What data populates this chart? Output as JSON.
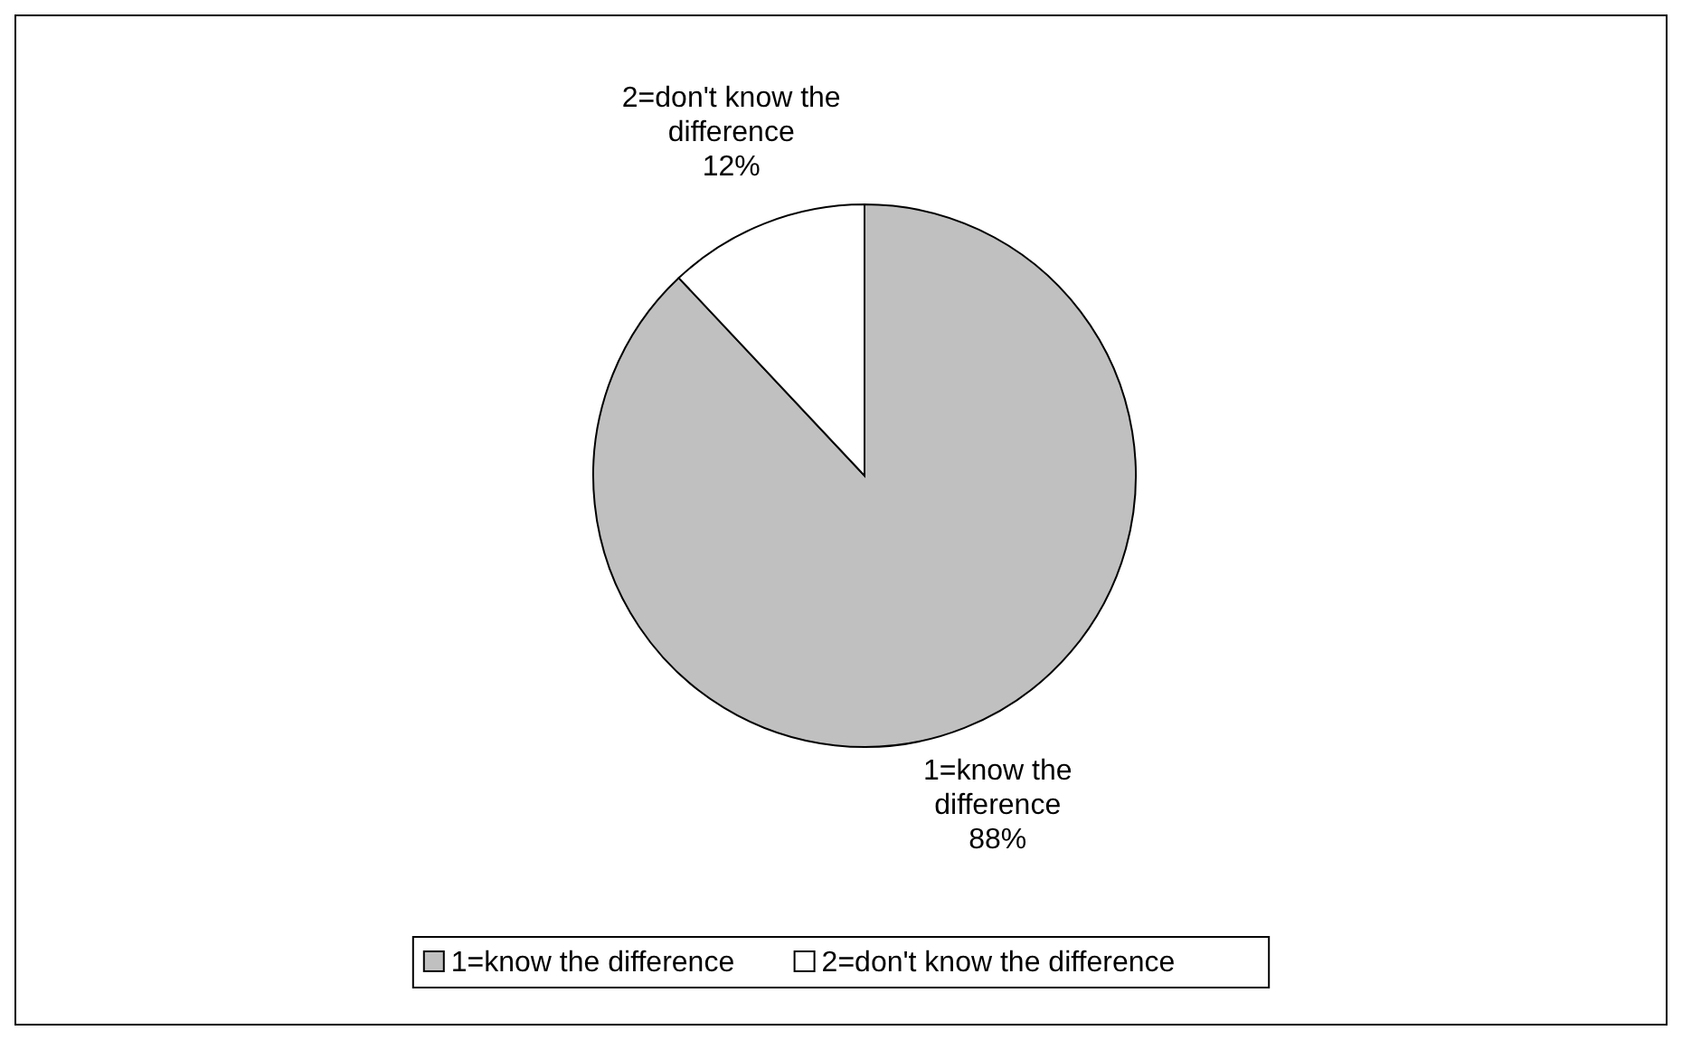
{
  "chart_data": {
    "type": "pie",
    "categories": [
      "1=know the difference",
      "2=don't know the difference"
    ],
    "values": [
      88,
      12
    ],
    "colors": [
      "#c0c0c0",
      "#ffffff"
    ],
    "value_labels": [
      "88%",
      "12%"
    ],
    "legend": "bottom"
  }
}
